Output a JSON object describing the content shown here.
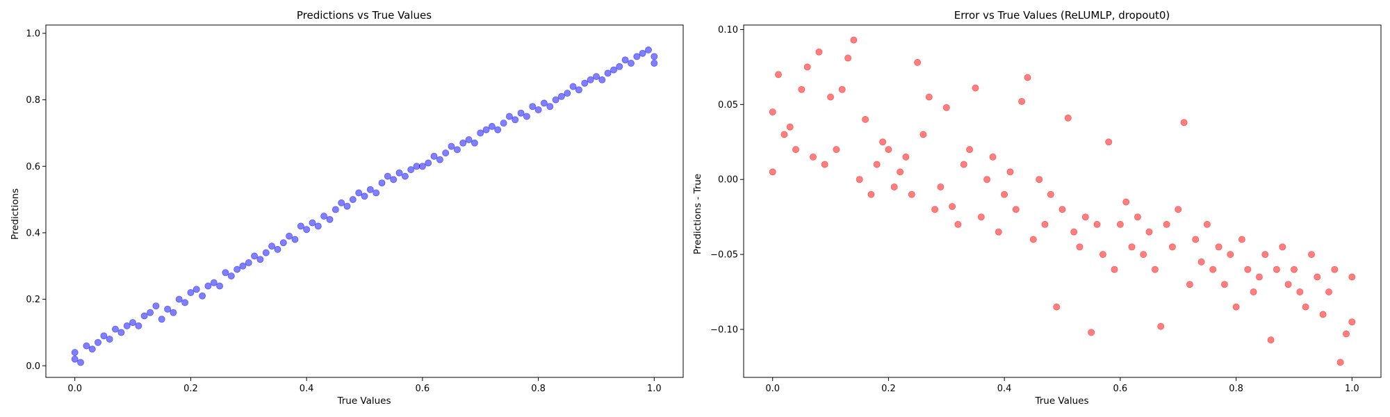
{
  "chart_data": [
    {
      "type": "scatter",
      "title": "Predictions vs True Values",
      "xlabel": "True Values",
      "ylabel": "Predictions",
      "xlim": [
        -0.05,
        1.05
      ],
      "ylim": [
        -0.035,
        1.025
      ],
      "xticks": [
        0.0,
        0.2,
        0.4,
        0.6,
        0.8,
        1.0
      ],
      "xtick_labels": [
        "0.0",
        "0.2",
        "0.4",
        "0.6",
        "0.8",
        "1.0"
      ],
      "yticks": [
        0.0,
        0.2,
        0.4,
        0.6,
        0.8,
        1.0
      ],
      "ytick_labels": [
        "0.0",
        "0.2",
        "0.4",
        "0.6",
        "0.8",
        "1.0"
      ],
      "grid": false,
      "series": [
        {
          "color": "#0000ff",
          "alpha": 0.5,
          "x": [
            0.0,
            0.0,
            0.01,
            0.02,
            0.03,
            0.04,
            0.05,
            0.06,
            0.07,
            0.08,
            0.09,
            0.1,
            0.11,
            0.12,
            0.13,
            0.14,
            0.15,
            0.16,
            0.17,
            0.18,
            0.19,
            0.2,
            0.21,
            0.22,
            0.23,
            0.24,
            0.25,
            0.26,
            0.27,
            0.28,
            0.29,
            0.3,
            0.31,
            0.32,
            0.33,
            0.34,
            0.35,
            0.36,
            0.37,
            0.38,
            0.39,
            0.4,
            0.41,
            0.42,
            0.43,
            0.44,
            0.45,
            0.46,
            0.47,
            0.48,
            0.49,
            0.5,
            0.51,
            0.52,
            0.53,
            0.54,
            0.55,
            0.56,
            0.57,
            0.58,
            0.59,
            0.6,
            0.61,
            0.62,
            0.63,
            0.64,
            0.65,
            0.66,
            0.67,
            0.68,
            0.69,
            0.7,
            0.71,
            0.72,
            0.73,
            0.74,
            0.75,
            0.76,
            0.77,
            0.78,
            0.79,
            0.8,
            0.81,
            0.82,
            0.83,
            0.84,
            0.85,
            0.86,
            0.87,
            0.88,
            0.89,
            0.9,
            0.91,
            0.92,
            0.93,
            0.94,
            0.95,
            0.96,
            0.97,
            0.98,
            0.99,
            1.0,
            1.0
          ],
          "y": [
            0.04,
            0.02,
            0.01,
            0.06,
            0.05,
            0.07,
            0.09,
            0.08,
            0.11,
            0.1,
            0.12,
            0.13,
            0.12,
            0.15,
            0.16,
            0.18,
            0.14,
            0.17,
            0.16,
            0.2,
            0.19,
            0.22,
            0.23,
            0.21,
            0.24,
            0.25,
            0.24,
            0.28,
            0.27,
            0.29,
            0.3,
            0.31,
            0.33,
            0.32,
            0.34,
            0.36,
            0.35,
            0.37,
            0.39,
            0.38,
            0.42,
            0.41,
            0.43,
            0.42,
            0.45,
            0.44,
            0.47,
            0.49,
            0.48,
            0.5,
            0.52,
            0.51,
            0.53,
            0.52,
            0.55,
            0.57,
            0.56,
            0.58,
            0.57,
            0.59,
            0.6,
            0.6,
            0.61,
            0.63,
            0.62,
            0.64,
            0.66,
            0.65,
            0.67,
            0.68,
            0.67,
            0.7,
            0.71,
            0.72,
            0.71,
            0.73,
            0.75,
            0.74,
            0.76,
            0.75,
            0.78,
            0.77,
            0.79,
            0.78,
            0.8,
            0.81,
            0.82,
            0.84,
            0.83,
            0.85,
            0.86,
            0.87,
            0.86,
            0.88,
            0.89,
            0.9,
            0.92,
            0.91,
            0.93,
            0.94,
            0.95,
            0.93,
            0.91
          ]
        }
      ]
    },
    {
      "type": "scatter",
      "title": "Error vs True Values (ReLUMLP, dropout0)",
      "xlabel": "True Values",
      "ylabel": "Predictions - True",
      "xlim": [
        -0.05,
        1.05
      ],
      "ylim": [
        -0.132,
        0.103
      ],
      "xticks": [
        0.0,
        0.2,
        0.4,
        0.6,
        0.8,
        1.0
      ],
      "xtick_labels": [
        "0.0",
        "0.2",
        "0.4",
        "0.6",
        "0.8",
        "1.0"
      ],
      "yticks": [
        0.1,
        0.05,
        0.0,
        -0.05,
        -0.1
      ],
      "ytick_labels": [
        "0.10",
        "0.05",
        "0.00",
        "−0.05",
        "−0.10"
      ],
      "grid": false,
      "series": [
        {
          "color": "#ff0000",
          "alpha": 0.5,
          "x": [
            0.0,
            0.0,
            0.01,
            0.02,
            0.03,
            0.04,
            0.05,
            0.06,
            0.07,
            0.08,
            0.09,
            0.1,
            0.11,
            0.12,
            0.13,
            0.14,
            0.15,
            0.16,
            0.17,
            0.18,
            0.19,
            0.2,
            0.21,
            0.22,
            0.23,
            0.24,
            0.25,
            0.26,
            0.27,
            0.28,
            0.29,
            0.3,
            0.31,
            0.32,
            0.33,
            0.34,
            0.35,
            0.36,
            0.37,
            0.38,
            0.39,
            0.4,
            0.41,
            0.42,
            0.43,
            0.44,
            0.45,
            0.46,
            0.47,
            0.48,
            0.49,
            0.5,
            0.51,
            0.52,
            0.53,
            0.54,
            0.55,
            0.56,
            0.57,
            0.58,
            0.59,
            0.6,
            0.61,
            0.62,
            0.63,
            0.64,
            0.65,
            0.66,
            0.67,
            0.68,
            0.69,
            0.7,
            0.71,
            0.72,
            0.73,
            0.74,
            0.75,
            0.76,
            0.77,
            0.78,
            0.79,
            0.8,
            0.81,
            0.82,
            0.83,
            0.84,
            0.85,
            0.86,
            0.87,
            0.88,
            0.89,
            0.9,
            0.91,
            0.92,
            0.93,
            0.94,
            0.95,
            0.96,
            0.97,
            0.98,
            0.99,
            1.0,
            1.0
          ],
          "y": [
            0.045,
            0.005,
            0.07,
            0.03,
            0.035,
            0.02,
            0.06,
            0.075,
            0.015,
            0.085,
            0.01,
            0.055,
            0.02,
            0.06,
            0.081,
            0.093,
            0.0,
            0.04,
            -0.01,
            0.01,
            0.025,
            0.02,
            -0.005,
            0.005,
            0.015,
            -0.01,
            0.078,
            0.03,
            0.055,
            -0.02,
            -0.005,
            0.048,
            -0.018,
            -0.03,
            0.01,
            0.02,
            0.061,
            -0.025,
            0.0,
            0.015,
            -0.035,
            -0.01,
            0.005,
            -0.02,
            0.052,
            0.068,
            -0.04,
            0.0,
            -0.03,
            -0.01,
            -0.085,
            -0.02,
            0.041,
            -0.035,
            -0.045,
            -0.025,
            -0.102,
            -0.03,
            -0.05,
            0.025,
            -0.06,
            -0.03,
            -0.015,
            -0.045,
            -0.025,
            -0.05,
            -0.035,
            -0.06,
            -0.098,
            -0.03,
            -0.045,
            -0.02,
            0.038,
            -0.07,
            -0.04,
            -0.055,
            -0.03,
            -0.06,
            -0.045,
            -0.07,
            -0.05,
            -0.085,
            -0.04,
            -0.06,
            -0.075,
            -0.065,
            -0.05,
            -0.107,
            -0.06,
            -0.045,
            -0.07,
            -0.06,
            -0.075,
            -0.085,
            -0.05,
            -0.065,
            -0.09,
            -0.075,
            -0.06,
            -0.122,
            -0.103,
            -0.065,
            -0.095
          ]
        }
      ]
    }
  ]
}
